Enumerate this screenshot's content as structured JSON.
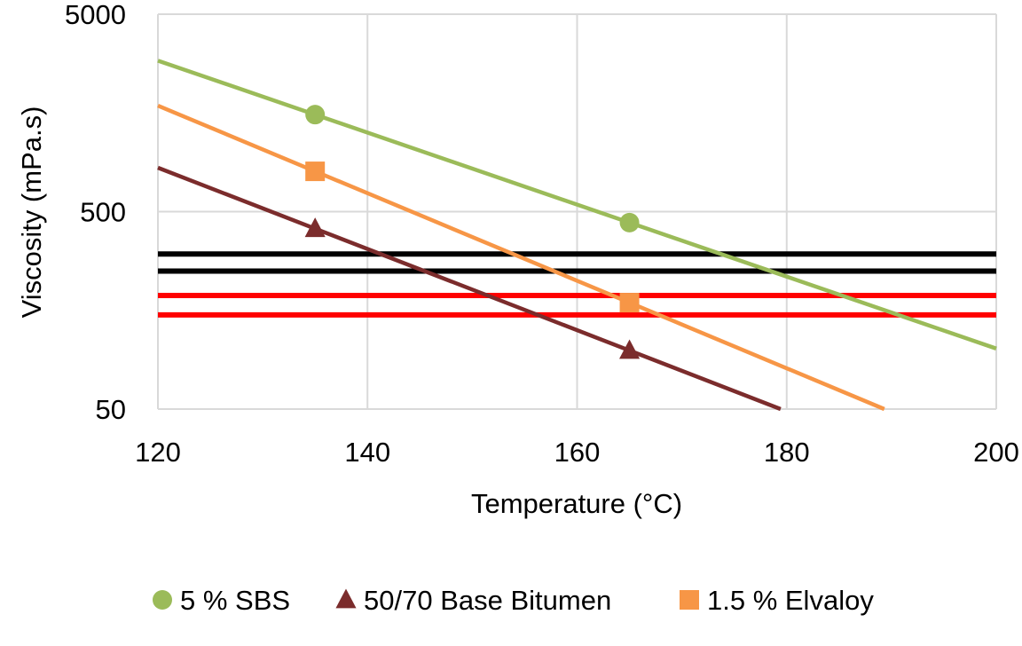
{
  "chart_data": {
    "type": "scatter",
    "xlabel": "Temperature (°C)",
    "ylabel": "Viscosity (mPa.s)",
    "xlim": [
      120,
      200
    ],
    "ylim": [
      50,
      5000
    ],
    "y_scale": "log",
    "x_ticks": [
      120,
      140,
      160,
      180,
      200
    ],
    "y_ticks": [
      50,
      500,
      5000
    ],
    "x_tick_labels": [
      "120",
      "140",
      "160",
      "180",
      "200"
    ],
    "y_tick_labels": [
      "50",
      "500",
      "5000"
    ],
    "grid": true,
    "legend_position": "bottom",
    "series": [
      {
        "name": "5 % SBS",
        "color": "#9BBB59",
        "marker": "circle",
        "x": [
          135,
          165
        ],
        "y": [
          1550,
          440
        ],
        "trendline": "exponential"
      },
      {
        "name": "50/70 Base Bitumen",
        "color": "#7B2C2C",
        "marker": "triangle",
        "x": [
          135,
          165
        ],
        "y": [
          410,
          99
        ],
        "trendline": "exponential"
      },
      {
        "name": "1.5 % Elvaloy",
        "color": "#F79646",
        "marker": "square",
        "x": [
          135,
          165
        ],
        "y": [
          800,
          173
        ],
        "trendline": "exponential"
      }
    ],
    "reference_lines": [
      {
        "color": "#000000",
        "y": 305
      },
      {
        "color": "#000000",
        "y": 250
      },
      {
        "color": "#FF0000",
        "y": 188
      },
      {
        "color": "#FF0000",
        "y": 150
      }
    ]
  }
}
